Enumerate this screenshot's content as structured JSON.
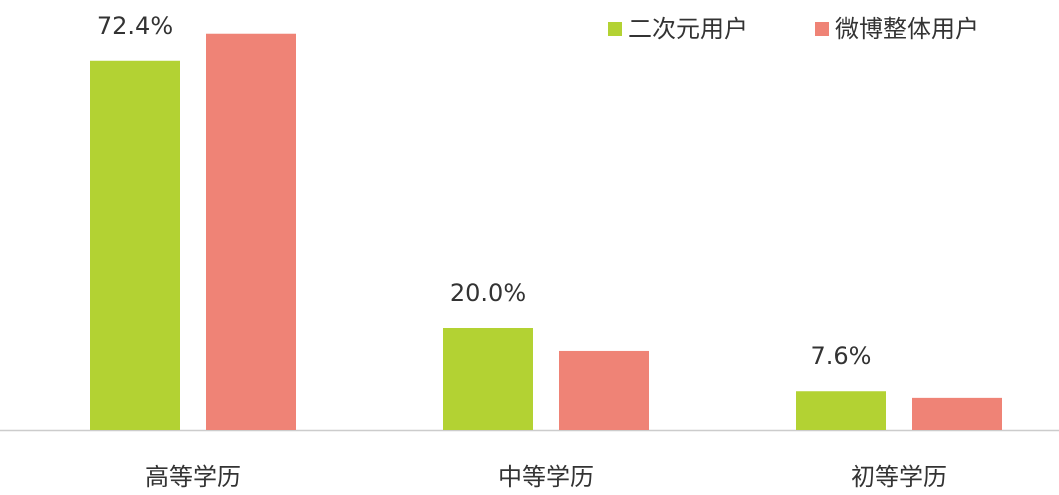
{
  "chart_data": {
    "type": "bar",
    "categories": [
      "高等学历",
      "中等学历",
      "初等学历"
    ],
    "series": [
      {
        "name": "二次元用户",
        "color": "#b3d233",
        "values": [
          72.4,
          20.0,
          7.6
        ],
        "value_labels": [
          "72.4%",
          "20.0%",
          "7.6%"
        ]
      },
      {
        "name": "微博整体用户",
        "color": "#ef8376",
        "values": [
          77.7,
          15.5,
          6.3
        ]
      }
    ],
    "legend": "top-right"
  }
}
